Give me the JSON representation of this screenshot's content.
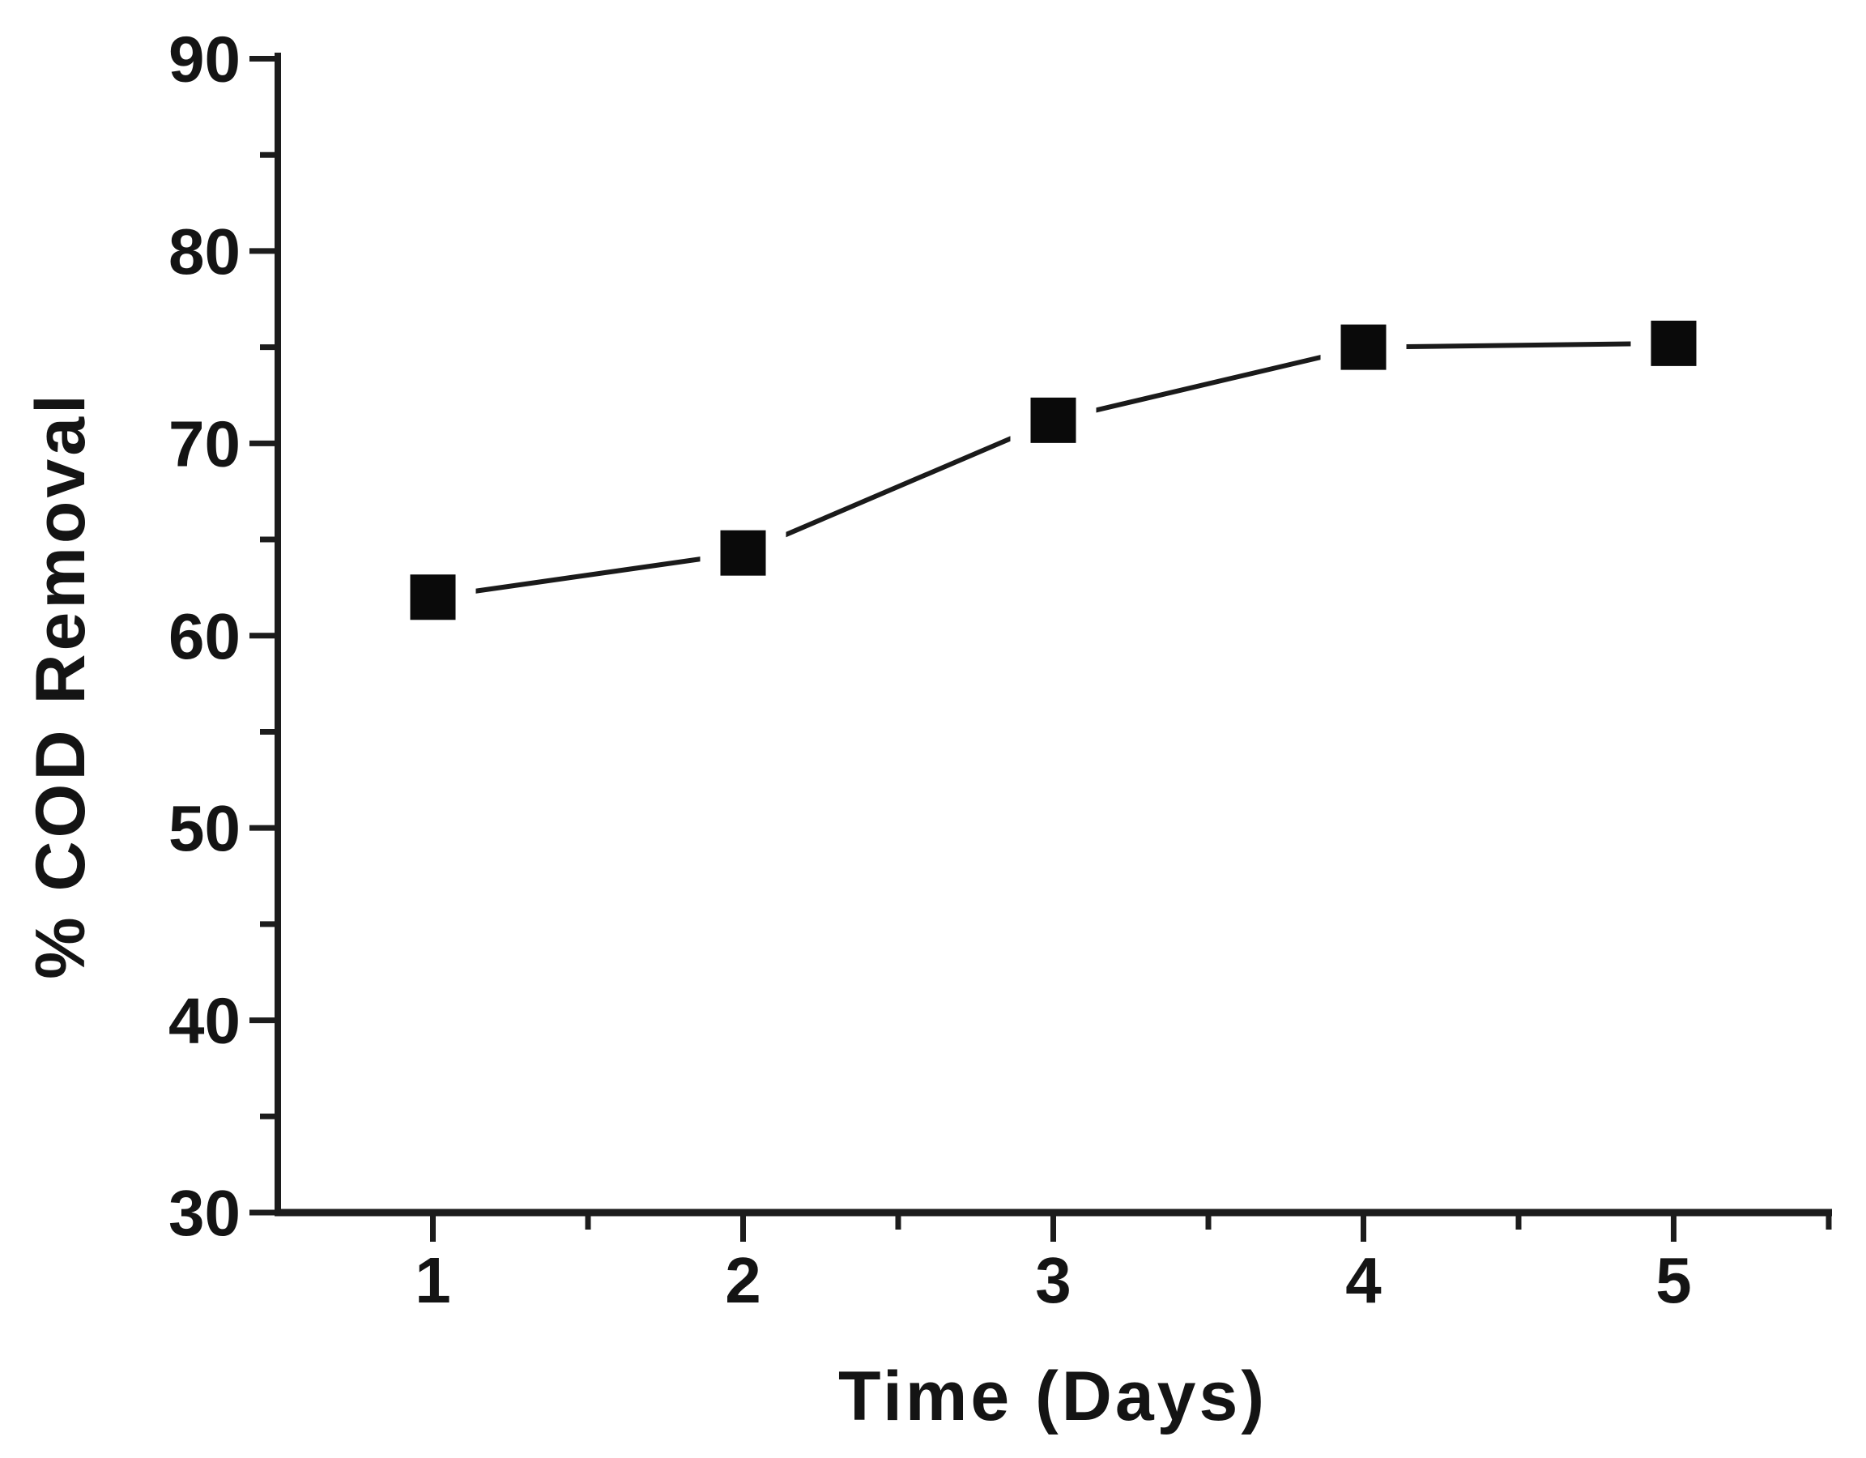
{
  "chart_data": {
    "type": "line",
    "title": "",
    "xlabel": "Time (Days)",
    "ylabel": "% COD Removal",
    "x": [
      1,
      2,
      3,
      4,
      5
    ],
    "series": [
      {
        "name": "% COD Removal",
        "values": [
          62.0,
          64.3,
          71.2,
          75.0,
          75.2
        ]
      }
    ],
    "xlim": [
      0.5,
      5.5
    ],
    "ylim": [
      30,
      90
    ],
    "x_major_ticks": [
      1,
      2,
      3,
      4,
      5
    ],
    "x_minor_step": 0.5,
    "y_major_ticks": [
      30,
      40,
      50,
      60,
      70,
      80,
      90
    ],
    "y_minor_step": 5,
    "grid": false,
    "legend_position": "none",
    "marker": "filled-square",
    "line_style": "solid-thin-with-gaps-at-markers",
    "colors": {
      "background": "#ffffff",
      "axis": "#1c1c1c",
      "text": "#141414",
      "line": "#1a1a1a",
      "marker": "#0a0a0a"
    }
  }
}
